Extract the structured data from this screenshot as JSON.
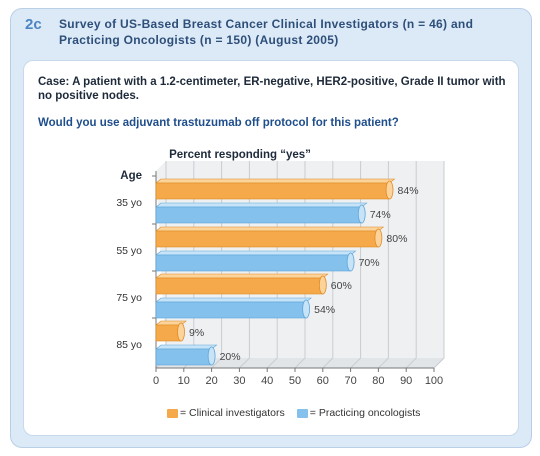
{
  "header": {
    "figure_number": "2c",
    "title": "Survey of US-Based Breast Cancer Clinical Investigators (n = 46) and Practicing Oncologists (n = 150) (August 2005)"
  },
  "case_text": "Case: A patient with a 1.2-centimeter, ER-negative, HER2-positive, Grade II tumor with no positive nodes.",
  "question": "Would you use adjuvant trastuzumab off protocol for this patient?",
  "legend": {
    "clinical": "= Clinical investigators",
    "oncologists": "= Practicing oncologists"
  },
  "colors": {
    "clinical": "#f6a94a",
    "clinical_top": "#fcd39a",
    "oncologists": "#84c1ec",
    "oncologists_top": "#c6e3f7",
    "grid": "#c9cdd2",
    "wall": "#eef0f2"
  },
  "chart_data": {
    "type": "bar",
    "orientation": "horizontal",
    "title": "Percent responding “yes”",
    "ylabel": "Age",
    "categories": [
      "35 yo",
      "55 yo",
      "75 yo",
      "85 yo"
    ],
    "series": [
      {
        "name": "Clinical investigators",
        "values": [
          84,
          80,
          60,
          9
        ],
        "labels": [
          "84%",
          "80%",
          "60%",
          "9%"
        ]
      },
      {
        "name": "Practicing oncologists",
        "values": [
          74,
          70,
          54,
          20
        ],
        "labels": [
          "74%",
          "70%",
          "54%",
          "20%"
        ]
      }
    ],
    "xlim": [
      0,
      100
    ],
    "xticks": [
      0,
      10,
      20,
      30,
      40,
      50,
      60,
      70,
      80,
      90,
      100
    ],
    "xtick_labels": [
      "0",
      "10",
      "20",
      "30",
      "40",
      "50",
      "60",
      "70",
      "80",
      "90",
      "100"
    ],
    "grid": true,
    "three_d": true
  }
}
